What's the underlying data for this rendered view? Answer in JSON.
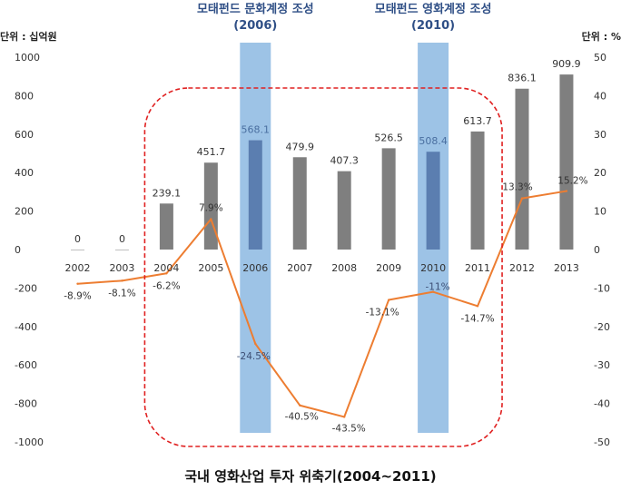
{
  "chart_data": {
    "type": "bar+line",
    "title": "국내 영화산업 투자 위축기(2004~2011)",
    "left_axis_label": "단위 : 십억원",
    "right_axis_label": "단위 : %",
    "categories": [
      "2002",
      "2003",
      "2004",
      "2005",
      "2006",
      "2007",
      "2008",
      "2009",
      "2010",
      "2011",
      "2012",
      "2013"
    ],
    "bar_series": {
      "values": [
        0,
        0,
        239.1,
        451.7,
        568.1,
        479.9,
        407.3,
        526.5,
        508.4,
        613.7,
        836.1,
        909.9
      ],
      "labels": [
        "0",
        "0",
        "239.1",
        "451.7",
        "568.1",
        "479.9",
        "407.3",
        "526.5",
        "508.4",
        "613.7",
        "836.1",
        "909.9"
      ],
      "color": "#7f7f7f"
    },
    "line_series": {
      "values": [
        -8.9,
        -8.1,
        -6.2,
        7.9,
        -24.5,
        -40.5,
        -43.5,
        -13.1,
        -11,
        -14.7,
        13.3,
        15.2
      ],
      "labels": [
        "-8.9%",
        "-8.1%",
        "-6.2%",
        "7.9%",
        "-24.5%",
        "-40.5%",
        "-43.5%",
        "-13.1%",
        "-11%",
        "-14.7%",
        "13.3%",
        "15.2%"
      ],
      "color": "#ed7d31"
    },
    "left_ylim": [
      -1000,
      1000
    ],
    "left_ticks": [
      1000,
      800,
      600,
      400,
      200,
      0,
      -200,
      -400,
      -600,
      -800,
      -1000
    ],
    "right_ylim": [
      -50,
      50
    ],
    "right_ticks": [
      50,
      40,
      30,
      20,
      10,
      0,
      -10,
      -20,
      -30,
      -40,
      -50
    ],
    "highlights": [
      {
        "category": "2006",
        "title_line1": "모태펀드 문화계정 조성",
        "title_line2": "(2006)"
      },
      {
        "category": "2010",
        "title_line1": "모태펀드 영화계정 조성",
        "title_line2": "(2010)"
      }
    ],
    "highlight_color": "#9dc3e6",
    "period_box": {
      "from": "2004",
      "to": "2011",
      "color": "#e02020"
    },
    "grid": false
  }
}
